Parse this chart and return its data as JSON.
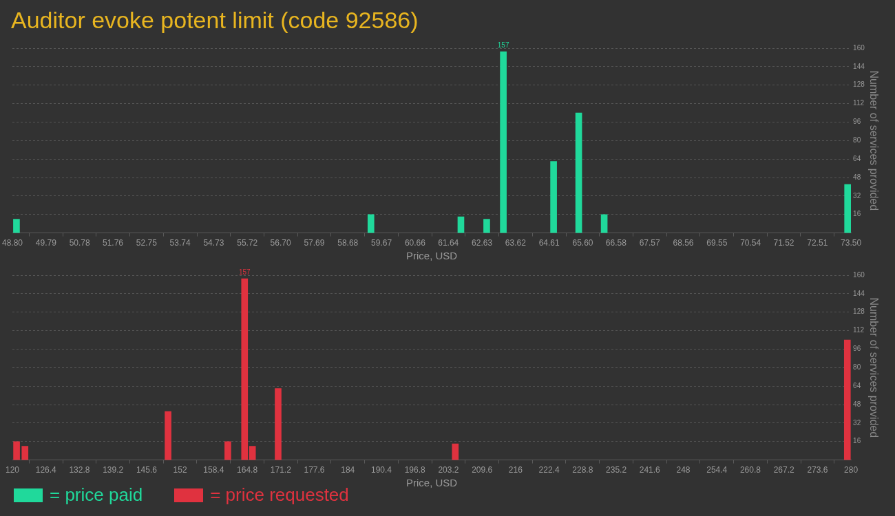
{
  "chart_data": [
    {
      "type": "bar",
      "title": "Auditor evoke potent limit (code 92586)",
      "xlabel": "Price, USD",
      "ylabel": "Number of services provided",
      "series": [
        {
          "name": "= price paid",
          "color": "#20d99b",
          "x": [
            48.92,
            59.36,
            62.01,
            62.77,
            63.26,
            64.74,
            65.48,
            66.23,
            73.4
          ],
          "values": [
            12,
            16,
            14,
            12,
            157,
            62,
            104,
            16,
            42
          ],
          "value_labels": [
            null,
            null,
            null,
            null,
            "157",
            null,
            null,
            null,
            null
          ]
        }
      ],
      "xlim": [
        48.8,
        73.5
      ],
      "xticks": [
        {
          "value": 48.8,
          "label": "48.80"
        },
        49.79,
        50.78,
        51.76,
        52.75,
        53.74,
        54.73,
        55.72,
        {
          "value": 56.7,
          "label": "56.70"
        },
        57.69,
        58.68,
        59.67,
        60.66,
        61.64,
        62.63,
        63.62,
        64.61,
        {
          "value": 65.6,
          "label": "65.60"
        },
        66.58,
        67.57,
        68.56,
        69.55,
        70.54,
        71.52,
        72.51,
        {
          "value": 73.5,
          "label": "73.50"
        }
      ],
      "ylim": [
        0,
        160
      ],
      "yticks": [
        16,
        32,
        48,
        64,
        80,
        96,
        112,
        128,
        144,
        160
      ],
      "grid": "y",
      "legend": "bottom left"
    },
    {
      "type": "bar",
      "xlabel": "Price, USD",
      "ylabel": "Number of services provided",
      "series": [
        {
          "name": "= price requested",
          "color": "#e0323f",
          "x": [
            120.8,
            122.4,
            149.7,
            161.1,
            164.3,
            165.8,
            170.7,
            204.5,
            279.3
          ],
          "values": [
            16,
            12,
            42,
            16,
            157,
            12,
            62,
            14,
            104
          ],
          "value_labels": [
            null,
            null,
            null,
            null,
            "157",
            null,
            null,
            null,
            null
          ]
        }
      ],
      "xlim": [
        120,
        280
      ],
      "xticks": [
        120,
        126.4,
        132.8,
        139.2,
        145.6,
        152,
        158.4,
        164.8,
        171.2,
        177.6,
        184,
        190.4,
        196.8,
        203.2,
        209.6,
        216,
        222.4,
        228.8,
        235.2,
        241.6,
        248,
        254.4,
        260.8,
        267.2,
        273.6,
        280
      ],
      "ylim": [
        0,
        160
      ],
      "yticks": [
        16,
        32,
        48,
        64,
        80,
        96,
        112,
        128,
        144,
        160
      ],
      "grid": "y",
      "legend": "bottom left"
    }
  ]
}
